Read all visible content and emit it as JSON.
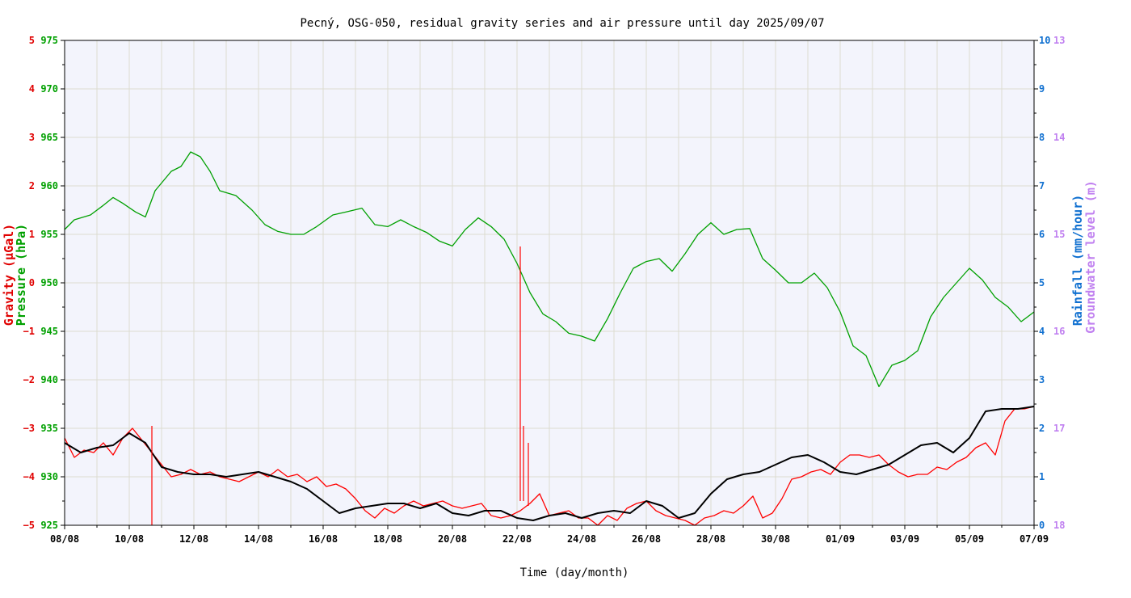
{
  "chart_data": {
    "type": "line",
    "title": "Pecný, OSG-050, residual gravity series and air pressure until day 2025/09/07",
    "xlabel": "Time (day/month)",
    "x_tick_labels": [
      "08/08",
      "10/08",
      "12/08",
      "14/08",
      "16/08",
      "18/08",
      "20/08",
      "22/08",
      "24/08",
      "26/08",
      "28/08",
      "30/08",
      "01/09",
      "03/09",
      "05/09",
      "07/09"
    ],
    "x_range_days": [
      0,
      30
    ],
    "axes": {
      "gravity": {
        "label": "Gravity (μGal)",
        "color": "#e00000",
        "ylim": [
          -5,
          5
        ],
        "ticks": [
          "5",
          "4",
          "3",
          "2",
          "1",
          "0",
          "−1",
          "−2",
          "−3",
          "−4",
          "−5"
        ]
      },
      "pressure": {
        "label": "Pressure (hPa)",
        "color": "#00a000",
        "ylim": [
          925,
          975
        ],
        "ticks": [
          "975",
          "970",
          "965",
          "960",
          "955",
          "950",
          "945",
          "940",
          "935",
          "930",
          "925"
        ]
      },
      "rainfall": {
        "label": "Rainfall (mm/hour)",
        "color": "#1070d0",
        "ylim": [
          0,
          10
        ],
        "ticks": [
          "10",
          "9",
          "8",
          "7",
          "6",
          "5",
          "4",
          "3",
          "2",
          "1",
          "0"
        ]
      },
      "groundwater": {
        "label": "Groundwater level (m)",
        "color": "#c080f0",
        "ylim": [
          13,
          18
        ],
        "inverted": true,
        "ticks": [
          "13",
          "14",
          "15",
          "16",
          "17",
          "18"
        ]
      }
    },
    "grid": true,
    "series": [
      {
        "name": "Pressure (hPa)",
        "axis": "pressure",
        "color": "#00a000",
        "x": [
          0,
          0.3,
          0.8,
          1.2,
          1.5,
          1.8,
          2.2,
          2.5,
          2.8,
          3.3,
          3.6,
          3.9,
          4.2,
          4.5,
          4.8,
          5.3,
          5.8,
          6.2,
          6.6,
          7.0,
          7.4,
          7.8,
          8.3,
          8.7,
          9.2,
          9.6,
          10.0,
          10.4,
          10.8,
          11.2,
          11.6,
          12.0,
          12.4,
          12.8,
          13.2,
          13.6,
          14.0,
          14.4,
          14.8,
          15.2,
          15.6,
          16.0,
          16.4,
          16.8,
          17.2,
          17.6,
          18.0,
          18.4,
          18.8,
          19.2,
          19.6,
          20.0,
          20.4,
          20.8,
          21.2,
          21.6,
          22.0,
          22.4,
          22.8,
          23.2,
          23.6,
          24.0,
          24.4,
          24.8,
          25.2,
          25.6,
          26.0,
          26.4,
          26.8,
          27.2,
          27.6,
          28.0,
          28.4,
          28.8,
          29.2,
          29.6,
          30.0
        ],
        "y": [
          955.5,
          956.5,
          957.0,
          958.0,
          958.8,
          958.2,
          957.3,
          956.8,
          959.5,
          961.5,
          962.0,
          963.5,
          963.0,
          961.5,
          959.5,
          959.0,
          957.5,
          956.0,
          955.3,
          955.0,
          955.0,
          955.8,
          957.0,
          957.3,
          957.7,
          956.0,
          955.8,
          956.5,
          955.8,
          955.2,
          954.3,
          953.8,
          955.5,
          956.7,
          955.8,
          954.5,
          952.0,
          949.0,
          946.8,
          946.0,
          944.8,
          944.5,
          944.0,
          946.3,
          949.0,
          951.5,
          952.2,
          952.5,
          951.2,
          953.0,
          955.0,
          956.2,
          955.0,
          955.5,
          955.6,
          952.5,
          951.3,
          950.0,
          950.0,
          951.0,
          949.5,
          947.0,
          943.5,
          942.5,
          939.3,
          941.5,
          942.0,
          943.0,
          946.5,
          948.5,
          950.0,
          951.5,
          950.3,
          948.5,
          947.5,
          946.0,
          947.0
        ]
      },
      {
        "name": "Gravity raw (μGal)",
        "axis": "gravity",
        "color": "#ff0000",
        "x": [
          0,
          0.3,
          0.6,
          0.9,
          1.2,
          1.5,
          1.8,
          2.1,
          2.4,
          2.7,
          3.0,
          3.3,
          3.6,
          3.9,
          4.2,
          4.5,
          4.8,
          5.1,
          5.4,
          5.7,
          6.0,
          6.3,
          6.6,
          6.9,
          7.2,
          7.5,
          7.8,
          8.1,
          8.4,
          8.7,
          9.0,
          9.3,
          9.6,
          9.9,
          10.2,
          10.5,
          10.8,
          11.1,
          11.4,
          11.7,
          12.0,
          12.3,
          12.6,
          12.9,
          13.2,
          13.5,
          13.8,
          14.1,
          14.4,
          14.7,
          15.0,
          15.3,
          15.6,
          15.9,
          16.2,
          16.5,
          16.8,
          17.1,
          17.4,
          17.7,
          18.0,
          18.3,
          18.6,
          18.9,
          19.2,
          19.5,
          19.8,
          20.1,
          20.4,
          20.7,
          21.0,
          21.3,
          21.6,
          21.9,
          22.2,
          22.5,
          22.8,
          23.1,
          23.4,
          23.7,
          24.0,
          24.3,
          24.6,
          24.9,
          25.2,
          25.5,
          25.8,
          26.1,
          26.4,
          26.7,
          27.0,
          27.3,
          27.6,
          27.9,
          28.2,
          28.5,
          28.8,
          29.1,
          29.4,
          29.7,
          30.0
        ],
        "y": [
          -3.2,
          -3.6,
          -3.45,
          -3.5,
          -3.3,
          -3.55,
          -3.2,
          -3.0,
          -3.25,
          -3.5,
          -3.75,
          -4.0,
          -3.95,
          -3.85,
          -3.95,
          -3.9,
          -4.0,
          -4.05,
          -4.1,
          -4.0,
          -3.9,
          -4.0,
          -3.85,
          -4.0,
          -3.95,
          -4.1,
          -4.0,
          -4.2,
          -4.15,
          -4.25,
          -4.45,
          -4.7,
          -4.85,
          -4.65,
          -4.75,
          -4.6,
          -4.5,
          -4.6,
          -4.55,
          -4.5,
          -4.6,
          -4.65,
          -4.6,
          -4.55,
          -4.8,
          -4.85,
          -4.8,
          -4.7,
          -4.55,
          -4.35,
          -4.8,
          -4.75,
          -4.7,
          -4.85,
          -4.85,
          -5.0,
          -4.8,
          -4.9,
          -4.65,
          -4.55,
          -4.5,
          -4.7,
          -4.8,
          -4.85,
          -4.9,
          -5.0,
          -4.85,
          -4.8,
          -4.7,
          -4.75,
          -4.6,
          -4.4,
          -4.85,
          -4.75,
          -4.45,
          -4.05,
          -4.0,
          -3.9,
          -3.85,
          -3.95,
          -3.7,
          -3.55,
          -3.55,
          -3.6,
          -3.55,
          -3.75,
          -3.9,
          -4.0,
          -3.95,
          -3.95,
          -3.8,
          -3.85,
          -3.7,
          -3.6,
          -3.4,
          -3.3,
          -3.55,
          -2.85,
          -2.6,
          -2.6,
          -2.55
        ]
      },
      {
        "name": "Gravity smoothed (μGal)",
        "axis": "gravity",
        "color": "#000000",
        "x": [
          0,
          0.5,
          1.0,
          1.5,
          2.0,
          2.5,
          3.0,
          3.5,
          4.0,
          4.5,
          5.0,
          5.5,
          6.0,
          6.5,
          7.0,
          7.5,
          8.0,
          8.5,
          9.0,
          9.5,
          10.0,
          10.5,
          11.0,
          11.5,
          12.0,
          12.5,
          13.0,
          13.5,
          14.0,
          14.5,
          15.0,
          15.5,
          16.0,
          16.5,
          17.0,
          17.5,
          18.0,
          18.5,
          19.0,
          19.5,
          20.0,
          20.5,
          21.0,
          21.5,
          22.0,
          22.5,
          23.0,
          23.5,
          24.0,
          24.5,
          25.0,
          25.5,
          26.0,
          26.5,
          27.0,
          27.5,
          28.0,
          28.5,
          29.0,
          29.5,
          30.0
        ],
        "y": [
          -3.3,
          -3.5,
          -3.4,
          -3.35,
          -3.1,
          -3.3,
          -3.8,
          -3.9,
          -3.95,
          -3.95,
          -4.0,
          -3.95,
          -3.9,
          -4.0,
          -4.1,
          -4.25,
          -4.5,
          -4.75,
          -4.65,
          -4.6,
          -4.55,
          -4.55,
          -4.65,
          -4.55,
          -4.75,
          -4.8,
          -4.7,
          -4.7,
          -4.85,
          -4.9,
          -4.8,
          -4.75,
          -4.85,
          -4.75,
          -4.7,
          -4.75,
          -4.5,
          -4.6,
          -4.85,
          -4.75,
          -4.35,
          -4.05,
          -3.95,
          -3.9,
          -3.75,
          -3.6,
          -3.55,
          -3.7,
          -3.9,
          -3.95,
          -3.85,
          -3.75,
          -3.55,
          -3.35,
          -3.3,
          -3.5,
          -3.2,
          -2.65,
          -2.6,
          -2.6,
          -2.55
        ]
      }
    ],
    "annotations": [
      {
        "type": "spike",
        "series": "Gravity raw (μGal)",
        "x": 2.7,
        "y_from": -5.0,
        "y_to": -2.95
      },
      {
        "type": "spike",
        "series": "Gravity raw (μGal)",
        "x": 14.1,
        "y_from": -4.5,
        "y_to": 0.75
      },
      {
        "type": "spike",
        "series": "Gravity raw (μGal)",
        "x": 14.2,
        "y_from": -4.5,
        "y_to": -2.95
      },
      {
        "type": "spike",
        "series": "Gravity raw (μGal)",
        "x": 14.35,
        "y_from": -4.6,
        "y_to": -3.3
      }
    ]
  }
}
